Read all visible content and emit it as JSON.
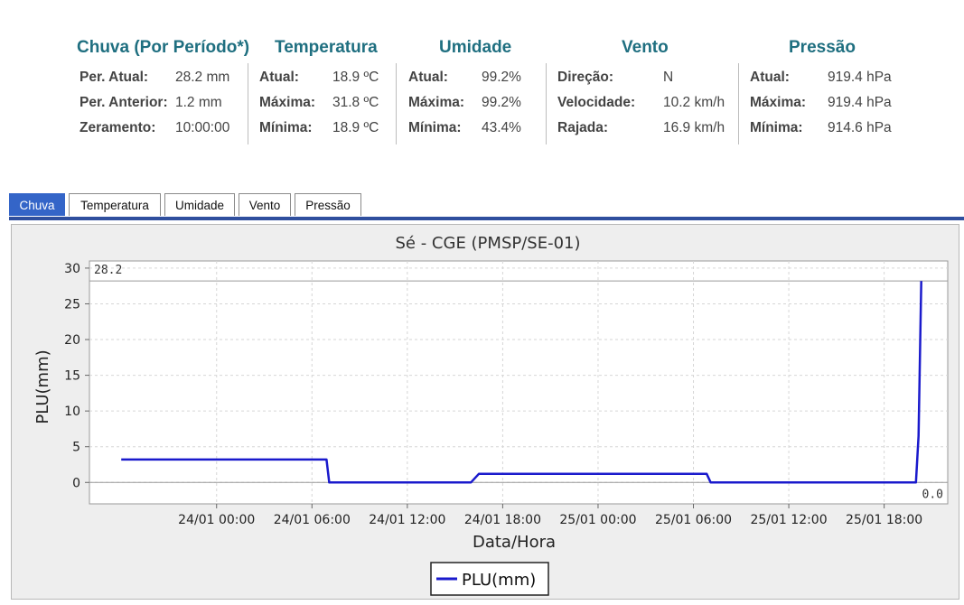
{
  "stats": [
    {
      "title": "Chuva (Por Período*)",
      "rows": [
        {
          "label": "Per. Atual:",
          "value": "28.2 mm"
        },
        {
          "label": "Per. Anterior:",
          "value": "1.2 mm"
        },
        {
          "label": "Zeramento:",
          "value": "10:00:00"
        }
      ]
    },
    {
      "title": "Temperatura",
      "rows": [
        {
          "label": "Atual:",
          "value": "18.9 ºC"
        },
        {
          "label": "Máxima:",
          "value": "31.8 ºC"
        },
        {
          "label": "Mínima:",
          "value": "18.9 ºC"
        }
      ]
    },
    {
      "title": "Umidade",
      "rows": [
        {
          "label": "Atual:",
          "value": "99.2%"
        },
        {
          "label": "Máxima:",
          "value": "99.2%"
        },
        {
          "label": "Mínima:",
          "value": "43.4%"
        }
      ]
    },
    {
      "title": "Vento",
      "rows": [
        {
          "label": "Direção:",
          "value": "N"
        },
        {
          "label": "Velocidade:",
          "value": "10.2 km/h"
        },
        {
          "label": "Rajada:",
          "value": "16.9 km/h"
        }
      ]
    },
    {
      "title": "Pressão",
      "rows": [
        {
          "label": "Atual:",
          "value": "919.4 hPa"
        },
        {
          "label": "Máxima:",
          "value": "919.4 hPa"
        },
        {
          "label": "Mínima:",
          "value": "914.6 hPa"
        }
      ]
    }
  ],
  "tabs": [
    {
      "label": "Chuva",
      "active": true
    },
    {
      "label": "Temperatura",
      "active": false
    },
    {
      "label": "Umidade",
      "active": false
    },
    {
      "label": "Vento",
      "active": false
    },
    {
      "label": "Pressão",
      "active": false
    }
  ],
  "colors": {
    "header": "#1f6f80",
    "active_tab": "#3465c8",
    "series": "#1a1acc"
  },
  "chart_data": {
    "type": "line",
    "title": "Sé - CGE (PMSP/SE-01)",
    "xlabel": "Data/Hora",
    "ylabel": "PLU(mm)",
    "xlim": [
      "2024-01-23T16:00",
      "2024-01-25T22:00"
    ],
    "ylim": [
      -3,
      31
    ],
    "x_ticks": [
      {
        "at": "2024-01-24T00:00",
        "label": "24/01 00:00"
      },
      {
        "at": "2024-01-24T06:00",
        "label": "24/01 06:00"
      },
      {
        "at": "2024-01-24T12:00",
        "label": "24/01 12:00"
      },
      {
        "at": "2024-01-24T18:00",
        "label": "24/01 18:00"
      },
      {
        "at": "2024-01-25T00:00",
        "label": "25/01 00:00"
      },
      {
        "at": "2024-01-25T06:00",
        "label": "25/01 06:00"
      },
      {
        "at": "2024-01-25T12:00",
        "label": "25/01 12:00"
      },
      {
        "at": "2024-01-25T18:00",
        "label": "25/01 18:00"
      }
    ],
    "y_ticks": [
      0,
      5,
      10,
      15,
      20,
      25,
      30
    ],
    "grid": true,
    "legend": "bottom-center",
    "markers": [
      {
        "value": 28.2,
        "label": "28.2"
      },
      {
        "value": 0,
        "label": "0.0"
      }
    ],
    "series": [
      {
        "name": "PLU(mm)",
        "points": [
          [
            "2024-01-23T18:00",
            3.2
          ],
          [
            "2024-01-24T06:55",
            3.2
          ],
          [
            "2024-01-24T07:05",
            0.0
          ],
          [
            "2024-01-24T16:00",
            0.0
          ],
          [
            "2024-01-24T16:30",
            1.2
          ],
          [
            "2024-01-25T06:50",
            1.2
          ],
          [
            "2024-01-25T07:05",
            0.0
          ],
          [
            "2024-01-25T20:00",
            0.0
          ],
          [
            "2024-01-25T20:10",
            6.5
          ],
          [
            "2024-01-25T20:20",
            28.2
          ]
        ]
      }
    ]
  }
}
